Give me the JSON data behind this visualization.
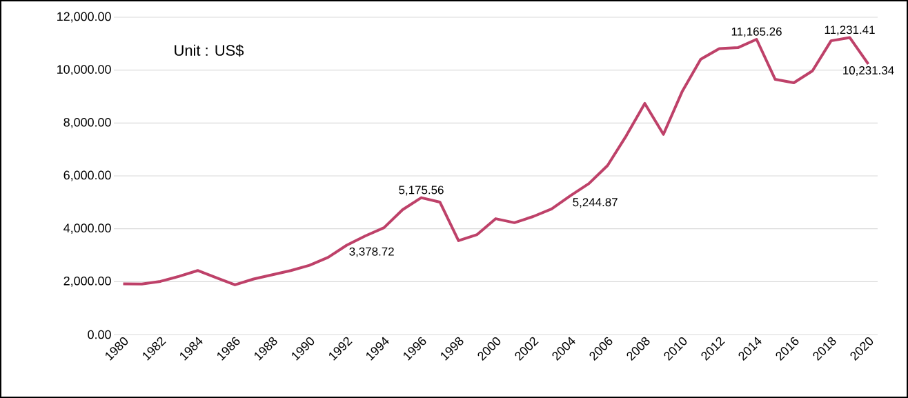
{
  "chart_data": {
    "type": "line",
    "categories": [
      "1980",
      null,
      "1982",
      null,
      "1984",
      null,
      "1986",
      null,
      "1988",
      null,
      "1990",
      null,
      "1992",
      null,
      "1994",
      null,
      "1996",
      null,
      "1998",
      null,
      "2000",
      null,
      "2002",
      null,
      "2004",
      null,
      "2006",
      null,
      "2008",
      null,
      "2010",
      null,
      "2012",
      null,
      "2014",
      null,
      "2016",
      null,
      "2018",
      null,
      "2020"
    ],
    "series": [
      {
        "color": "#be4169",
        "values": [
          1920,
          1910,
          2010,
          2200,
          2420,
          2150,
          1880,
          2100,
          2260,
          2420,
          2620,
          2920,
          3378.72,
          3730,
          4040,
          4720,
          5175.56,
          5010,
          3550,
          3780,
          4380,
          4230,
          4460,
          4750,
          5244.87,
          5710,
          6390,
          7510,
          8740,
          7570,
          9180,
          10410,
          10810,
          10850,
          11165.26,
          9650,
          9520,
          9970,
          11110,
          11231.41,
          10231.34
        ],
        "value_labels": [
          null,
          null,
          null,
          null,
          null,
          null,
          null,
          null,
          null,
          null,
          null,
          null,
          "3,378.72",
          null,
          null,
          null,
          "5,175.56",
          null,
          null,
          null,
          null,
          null,
          null,
          null,
          "5,244.87",
          null,
          null,
          null,
          null,
          null,
          null,
          null,
          null,
          null,
          "11,165.26",
          null,
          null,
          null,
          null,
          "11,231.41",
          "10,231.34"
        ]
      }
    ],
    "ylim": [
      0,
      12000
    ],
    "yticks": [
      {
        "value": 0,
        "label": "0.00"
      },
      {
        "value": 2000,
        "label": "2,000.00"
      },
      {
        "value": 4000,
        "label": "4,000.00"
      },
      {
        "value": 6000,
        "label": "6,000.00"
      },
      {
        "value": 8000,
        "label": "8,000.00"
      },
      {
        "value": 10000,
        "label": "10,000.00"
      },
      {
        "value": 12000,
        "label": "12,000.00"
      }
    ],
    "grid": "y",
    "marker": "none",
    "line_style": "solid",
    "annotations": [
      "Unit : US$"
    ]
  }
}
